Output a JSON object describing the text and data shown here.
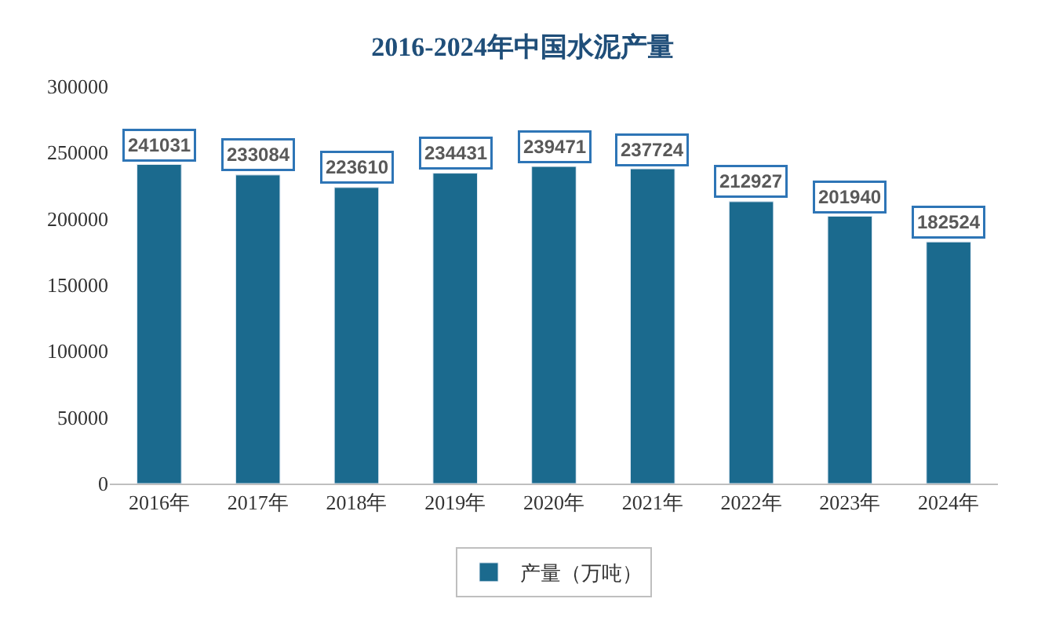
{
  "chart_data": {
    "type": "bar",
    "title": "2016-2024年中国水泥产量",
    "categories": [
      "2016年",
      "2017年",
      "2018年",
      "2019年",
      "2020年",
      "2021年",
      "2022年",
      "2023年",
      "2024年"
    ],
    "series": [
      {
        "name": "产量（万吨）",
        "color": "#1b6a8e",
        "values": [
          241031,
          233084,
          223610,
          234431,
          239471,
          237724,
          212927,
          201940,
          182524
        ]
      }
    ],
    "ylim": [
      0,
      300000
    ],
    "yticks": [
      0,
      50000,
      100000,
      150000,
      200000,
      250000,
      300000
    ],
    "data_labels": true,
    "legend": "bottom"
  }
}
